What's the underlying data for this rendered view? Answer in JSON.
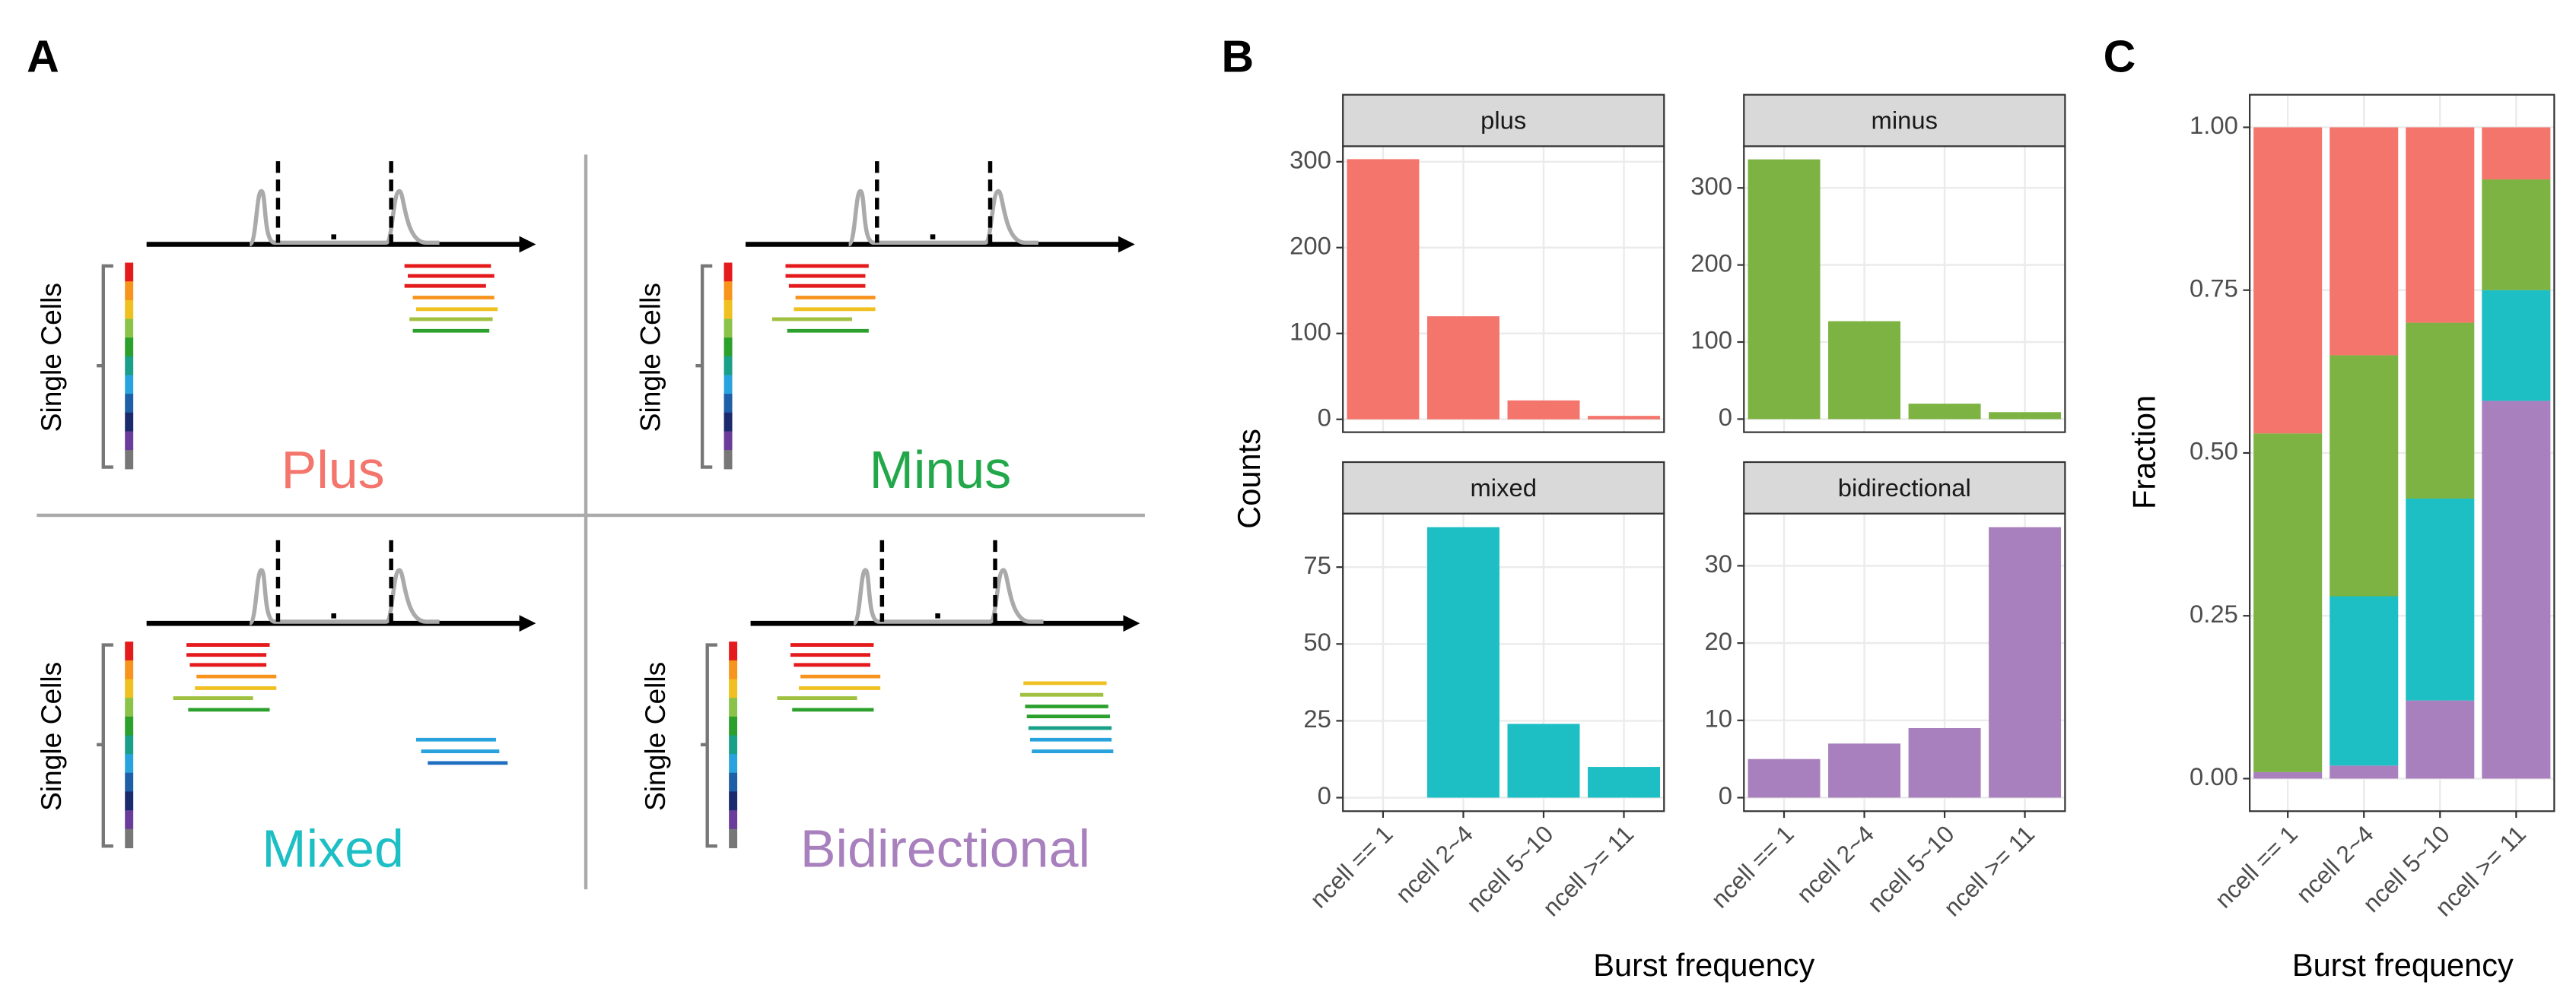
{
  "panel_labels": [
    "A",
    "B",
    "C"
  ],
  "panel_a": {
    "quadrants": [
      {
        "label": "Plus",
        "y_label": "Single Cells"
      },
      {
        "label": "Minus",
        "y_label": "Single Cells"
      },
      {
        "label": "Mixed",
        "y_label": "Single Cells"
      },
      {
        "label": "Bidirectional",
        "y_label": "Single Cells"
      }
    ]
  },
  "chart_data": [
    {
      "type": "facet_bar",
      "y_label": "Counts",
      "x_label": "Burst frequency",
      "categories": [
        "ncell == 1",
        "ncell 2~4",
        "ncell 5~10",
        "ncell >= 11"
      ],
      "facets": [
        {
          "title": "plus",
          "color": "#f4756c",
          "values": [
            303,
            120,
            22,
            4
          ],
          "ylim": [
            -15,
            318
          ],
          "yticks": [
            0,
            100,
            200,
            300
          ]
        },
        {
          "title": "minus",
          "color": "#7cb342",
          "values": [
            337,
            127,
            20,
            9
          ],
          "ylim": [
            -17,
            354
          ],
          "yticks": [
            0,
            100,
            200,
            300
          ]
        },
        {
          "title": "mixed",
          "color": "#1dbfc5",
          "values": [
            0,
            88,
            24,
            10
          ],
          "ylim": [
            -4.4,
            92.4
          ],
          "yticks": [
            0,
            25,
            50,
            75
          ]
        },
        {
          "title": "bidirectional",
          "color": "#a880bd",
          "values": [
            5,
            7,
            9,
            35
          ],
          "ylim": [
            -1.75,
            36.75
          ],
          "yticks": [
            0,
            10,
            20,
            30
          ]
        }
      ]
    },
    {
      "type": "stacked_bar",
      "y_label": "Fraction",
      "x_label": "Burst frequency",
      "categories": [
        "ncell == 1",
        "ncell 2~4",
        "ncell 5~10",
        "ncell >= 11"
      ],
      "ylim": [
        -0.05,
        1.05
      ],
      "yticks": [
        {
          "value": 0,
          "label": "0.00"
        },
        {
          "value": 0.25,
          "label": "0.25"
        },
        {
          "value": 0.5,
          "label": "0.50"
        },
        {
          "value": 0.75,
          "label": "0.75"
        },
        {
          "value": 1,
          "label": "1.00"
        }
      ],
      "series": [
        {
          "color": "#a880bd",
          "values": [
            0.01,
            0.02,
            0.12,
            0.58
          ]
        },
        {
          "color": "#1dbfc5",
          "values": [
            0,
            0.26,
            0.31,
            0.17
          ]
        },
        {
          "color": "#7cb342",
          "values": [
            0.52,
            0.37,
            0.27,
            0.17
          ]
        },
        {
          "color": "#f4756c",
          "values": [
            0.47,
            0.35,
            0.3,
            0.08
          ]
        }
      ]
    }
  ]
}
